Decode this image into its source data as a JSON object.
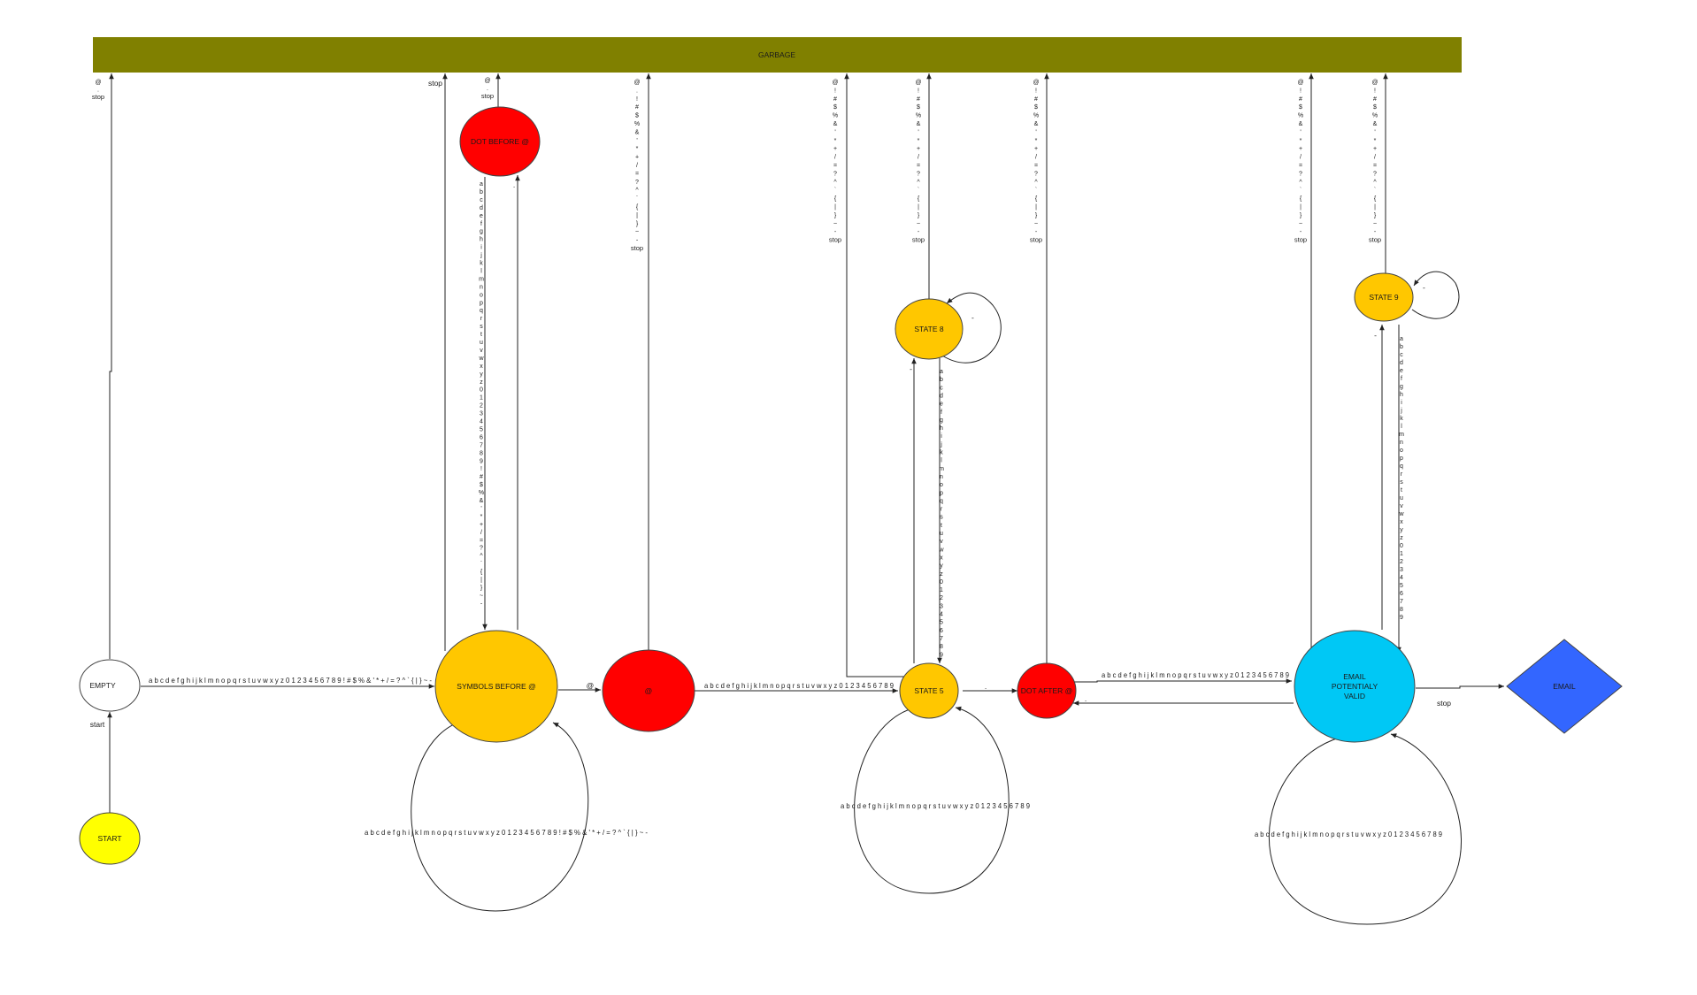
{
  "garbage": {
    "label": "GARBAGE",
    "color": "#808000"
  },
  "nodes": {
    "start": {
      "label": "START",
      "color": "#FFFF00"
    },
    "empty": {
      "label": "EMPTY",
      "color": "#FFFFFF"
    },
    "symbols_before_at": {
      "label": "SYMBOLS BEFORE @",
      "color": "#FFC700"
    },
    "dot_before_at": {
      "label": "DOT BEFORE @",
      "color": "#FF0000"
    },
    "at": {
      "label": "@",
      "color": "#FF0000"
    },
    "state5": {
      "label": "STATE 5",
      "color": "#FFC700"
    },
    "state8": {
      "label": "STATE 8",
      "color": "#FFC700"
    },
    "dot_after_at": {
      "label": "DOT AFTER @",
      "color": "#FF0000"
    },
    "state9": {
      "label": "STATE 9",
      "color": "#FFC700"
    },
    "email_potentially_valid": {
      "label_lines": [
        "EMAIL",
        "POTENTIALY",
        "VALID"
      ],
      "color": "#00C8F5"
    },
    "email": {
      "label": "EMAIL",
      "color": "#3366FF"
    }
  },
  "edges": {
    "start_to_empty": "start",
    "empty_to_garbage": [
      "@",
      ".",
      "stop"
    ],
    "empty_to_symbols": "a b c d e f g h i j k l m n o p q r s t u v w x y z 0 1 2 3 4 5 6 7 8 9 ! # $ % & ' * + / = ? ^ ` { | } ~ -",
    "symbols_self": "a b c d e f g h i j k l m n o p q r s t u v w x y z 0 1 2 3 4 5 6 7 8 9 ! # $ % & ' * + / = ? ^ ` { | } ~ -",
    "symbols_to_garbage": "stop",
    "symbols_to_dot": ".",
    "dot_to_garbage": [
      "@",
      ".",
      "stop"
    ],
    "dot_to_symbols": [
      "a",
      "b",
      "c",
      "d",
      "e",
      "f",
      "g",
      "h",
      "i",
      "j",
      "k",
      "l",
      "m",
      "n",
      "o",
      "p",
      "q",
      "r",
      "s",
      "t",
      "u",
      "v",
      "w",
      "x",
      "y",
      "z",
      "0",
      "1",
      "2",
      "3",
      "4",
      "5",
      "6",
      "7",
      "8",
      "9",
      "!",
      "#",
      "$",
      "%",
      "&",
      "'",
      "*",
      "+",
      "/",
      "=",
      "?",
      "^",
      "`",
      "{",
      "|",
      "}",
      "~",
      "-"
    ],
    "symbols_to_at": "@",
    "at_to_garbage": [
      "@",
      ".",
      "!",
      "#",
      "$",
      "%",
      "&",
      "'",
      "*",
      "+",
      "/",
      "=",
      "?",
      "^",
      "`",
      "{",
      "|",
      "}",
      "~",
      "-",
      "stop"
    ],
    "at_to_state5": "a b c d e f g h i j k l m n o p q r s t u v w x y z 0 1 2 3 4 5 6 7 8 9",
    "state5_self": "a b c d e f g h i j k l m n o p q r s t u v w x y z 0 1 2 3 4 5 6 7 8 9",
    "state5_to_garbage": [
      "@",
      "!",
      "#",
      "$",
      "%",
      "&",
      "'",
      "*",
      "+",
      "/",
      "=",
      "?",
      "^",
      "`",
      "{",
      "|",
      "}",
      "~",
      "-",
      "stop"
    ],
    "state5_to_state8": "-",
    "state8_self": "-",
    "state8_to_garbage": [
      "@",
      "!",
      "#",
      "$",
      "%",
      "&",
      "'",
      "*",
      "+",
      "/",
      "=",
      "?",
      "^",
      "`",
      "{",
      "|",
      "}",
      "~",
      "-",
      "stop"
    ],
    "state8_to_state5": [
      "a",
      "b",
      "c",
      "d",
      "e",
      "f",
      "g",
      "h",
      "i",
      "j",
      "k",
      "l",
      "m",
      "n",
      "o",
      "p",
      "q",
      "r",
      "s",
      "t",
      "u",
      "v",
      "w",
      "x",
      "y",
      "z",
      "0",
      "1",
      "2",
      "3",
      "4",
      "5",
      "6",
      "7",
      "8",
      "9"
    ],
    "state5_to_dot_after": ".",
    "dot_after_to_garbage": [
      "@",
      "!",
      "#",
      "$",
      "%",
      "&",
      "'",
      "*",
      "+",
      "/",
      "=",
      "?",
      "^",
      "`",
      "{",
      "|",
      "}",
      "~",
      "-",
      "stop"
    ],
    "dot_after_to_email_pv": "a b c d e f g h i j k l m n o p q r s t u v w x y z 0 1 2 3 4 5 6 7 8 9",
    "email_pv_to_dot_after": ".",
    "email_pv_self": "a b c d e f g h i j k l m n o p q r s t u v w x y z 0 1 2 3 4 5 6 7 8 9",
    "email_pv_to_garbage": [
      "@",
      "!",
      "#",
      "$",
      "%",
      "&",
      "'",
      "*",
      "+",
      "/",
      "=",
      "?",
      "^",
      "`",
      "{",
      "|",
      "}",
      "~",
      "-",
      "stop"
    ],
    "email_pv_to_state9": "-",
    "state9_self": "-",
    "state9_to_garbage": [
      "@",
      "!",
      "#",
      "$",
      "%",
      "&",
      "'",
      "*",
      "+",
      "/",
      "=",
      "?",
      "^",
      "`",
      "{",
      "|",
      "}",
      "~",
      "-",
      "stop"
    ],
    "state9_to_email_pv": [
      "a",
      "b",
      "c",
      "d",
      "e",
      "f",
      "g",
      "h",
      "i",
      "j",
      "k",
      "l",
      "m",
      "n",
      "o",
      "p",
      "q",
      "r",
      "s",
      "t",
      "u",
      "v",
      "w",
      "x",
      "y",
      "z",
      "0",
      "1",
      "2",
      "3",
      "4",
      "5",
      "6",
      "7",
      "8",
      "9"
    ],
    "email_pv_to_email": "stop"
  }
}
